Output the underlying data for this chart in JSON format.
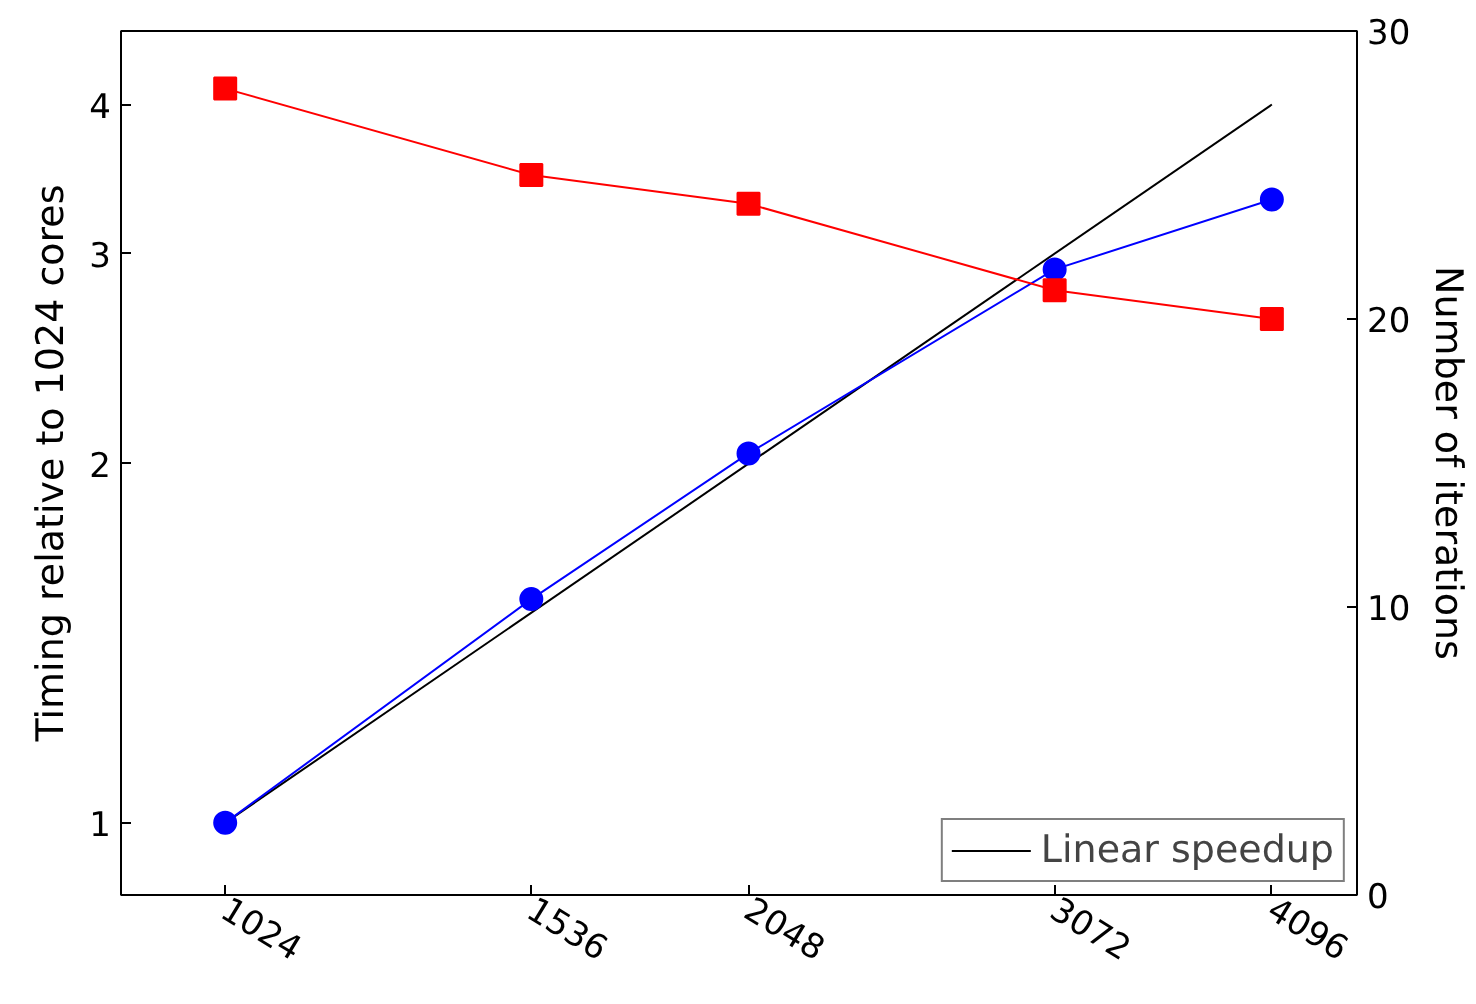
{
  "chart_data": {
    "type": "line",
    "x": [
      1024,
      1536,
      2048,
      3072,
      4096
    ],
    "xlim": [
      892,
      4585
    ],
    "xticks": [
      1024,
      1536,
      2048,
      3072,
      4096
    ],
    "ylim": [
      0.87,
      4.61
    ],
    "yticks": [
      1,
      2,
      3,
      4
    ],
    "y2lim": [
      0,
      30
    ],
    "y2ticks": [
      0,
      10,
      20,
      30
    ],
    "log": "xy",
    "grid": false,
    "legend": "bottom right",
    "ylabel": "Timing relative to 1024 cores",
    "y2label": "Number of iterations",
    "series": [
      {
        "name": "Linear speedup",
        "x": [
          1024,
          4096
        ],
        "values": [
          1,
          4
        ],
        "color": "#000000",
        "marker": "none"
      },
      {
        "values": [
          1,
          1.54,
          2.04,
          2.91,
          3.33
        ],
        "color": "#0000ff",
        "marker": "circle"
      },
      {
        "values": [
          28,
          25,
          24,
          21,
          20
        ],
        "color": "#ff0000",
        "marker": "square",
        "axis": "y2"
      }
    ]
  }
}
